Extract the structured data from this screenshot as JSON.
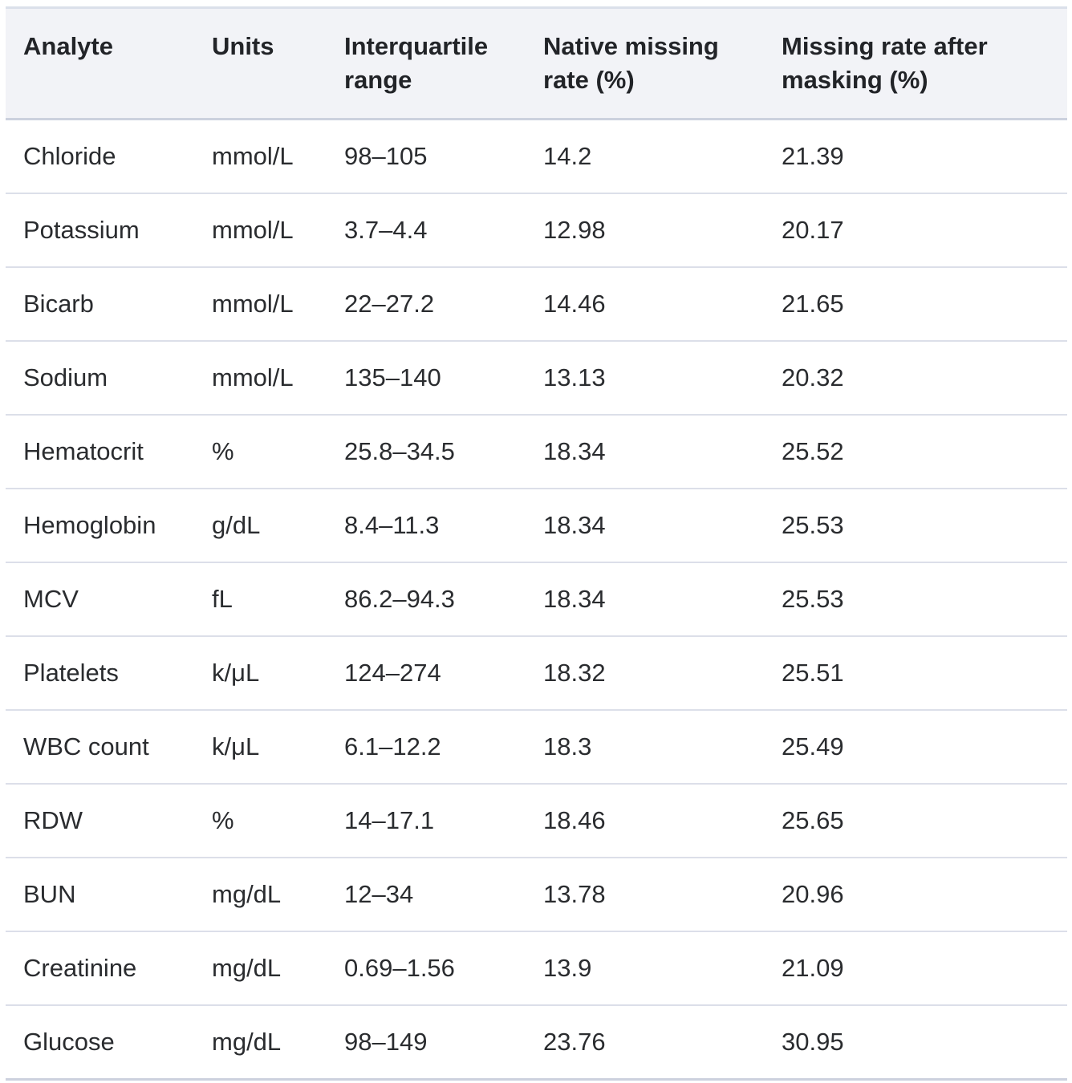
{
  "table": {
    "columns": [
      "Analyte",
      "Units",
      "Interquartile range",
      "Native missing rate (%)",
      "Missing rate after masking (%)"
    ],
    "column_keys": [
      "analyte",
      "units",
      "interquartile-range",
      "native-missing-rate",
      "missing-rate-after-masking"
    ],
    "rows": [
      [
        "Chloride",
        "mmol/L",
        "98–105",
        "14.2",
        "21.39"
      ],
      [
        "Potassium",
        "mmol/L",
        "3.7–4.4",
        "12.98",
        "20.17"
      ],
      [
        "Bicarb",
        "mmol/L",
        "22–27.2",
        "14.46",
        "21.65"
      ],
      [
        "Sodium",
        "mmol/L",
        "135–140",
        "13.13",
        "20.32"
      ],
      [
        "Hematocrit",
        "%",
        "25.8–34.5",
        "18.34",
        "25.52"
      ],
      [
        "Hemoglobin",
        "g/dL",
        "8.4–11.3",
        "18.34",
        "25.53"
      ],
      [
        "MCV",
        "fL",
        "86.2–94.3",
        "18.34",
        "25.53"
      ],
      [
        "Platelets",
        "k/μL",
        "124–274",
        "18.32",
        "25.51"
      ],
      [
        "WBC count",
        "k/μL",
        "6.1–12.2",
        "18.3",
        "25.49"
      ],
      [
        "RDW",
        "%",
        "14–17.1",
        "18.46",
        "25.65"
      ],
      [
        "BUN",
        "mg/dL",
        "12–34",
        "13.78",
        "20.96"
      ],
      [
        "Creatinine",
        "mg/dL",
        "0.69–1.56",
        "13.9",
        "21.09"
      ],
      [
        "Glucose",
        "mg/dL",
        "98–149",
        "23.76",
        "30.95"
      ]
    ]
  },
  "colors": {
    "header_background": "#f2f3f7",
    "table_top_border": "#dbe0ea",
    "header_bottom_border": "#ccd1de",
    "row_separator": "#dcdfe9",
    "table_bottom_border": "#ccd1de",
    "header_text": "#222428",
    "body_text": "#2a2c2f"
  }
}
